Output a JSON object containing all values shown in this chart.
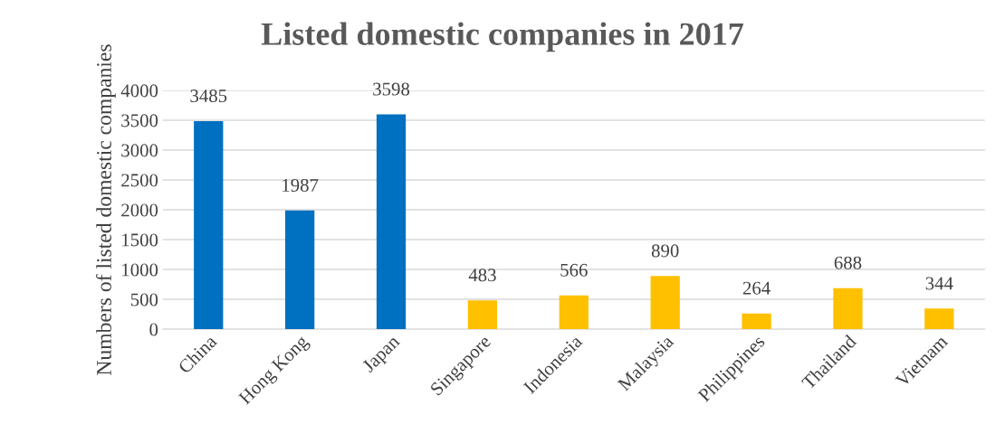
{
  "chart_data": {
    "type": "bar",
    "title": "Listed domestic companies in 2017",
    "ylabel": "Numbers of listed domestic companies",
    "categories": [
      "China",
      "Hong Kong",
      "Japan",
      "Singapore",
      "Indonesia",
      "Malaysia",
      "Philippines",
      "Thailand",
      "Vietnam"
    ],
    "values": [
      3485,
      1987,
      3598,
      483,
      566,
      890,
      264,
      688,
      344
    ],
    "colors": [
      "#0070c0",
      "#0070c0",
      "#0070c0",
      "#ffc000",
      "#ffc000",
      "#ffc000",
      "#ffc000",
      "#ffc000",
      "#ffc000"
    ],
    "ylim": [
      0,
      4000
    ],
    "yticks": [
      0,
      500,
      1000,
      1500,
      2000,
      2500,
      3000,
      3500,
      4000
    ],
    "grid": "y",
    "data_labels": true,
    "legend": false
  }
}
